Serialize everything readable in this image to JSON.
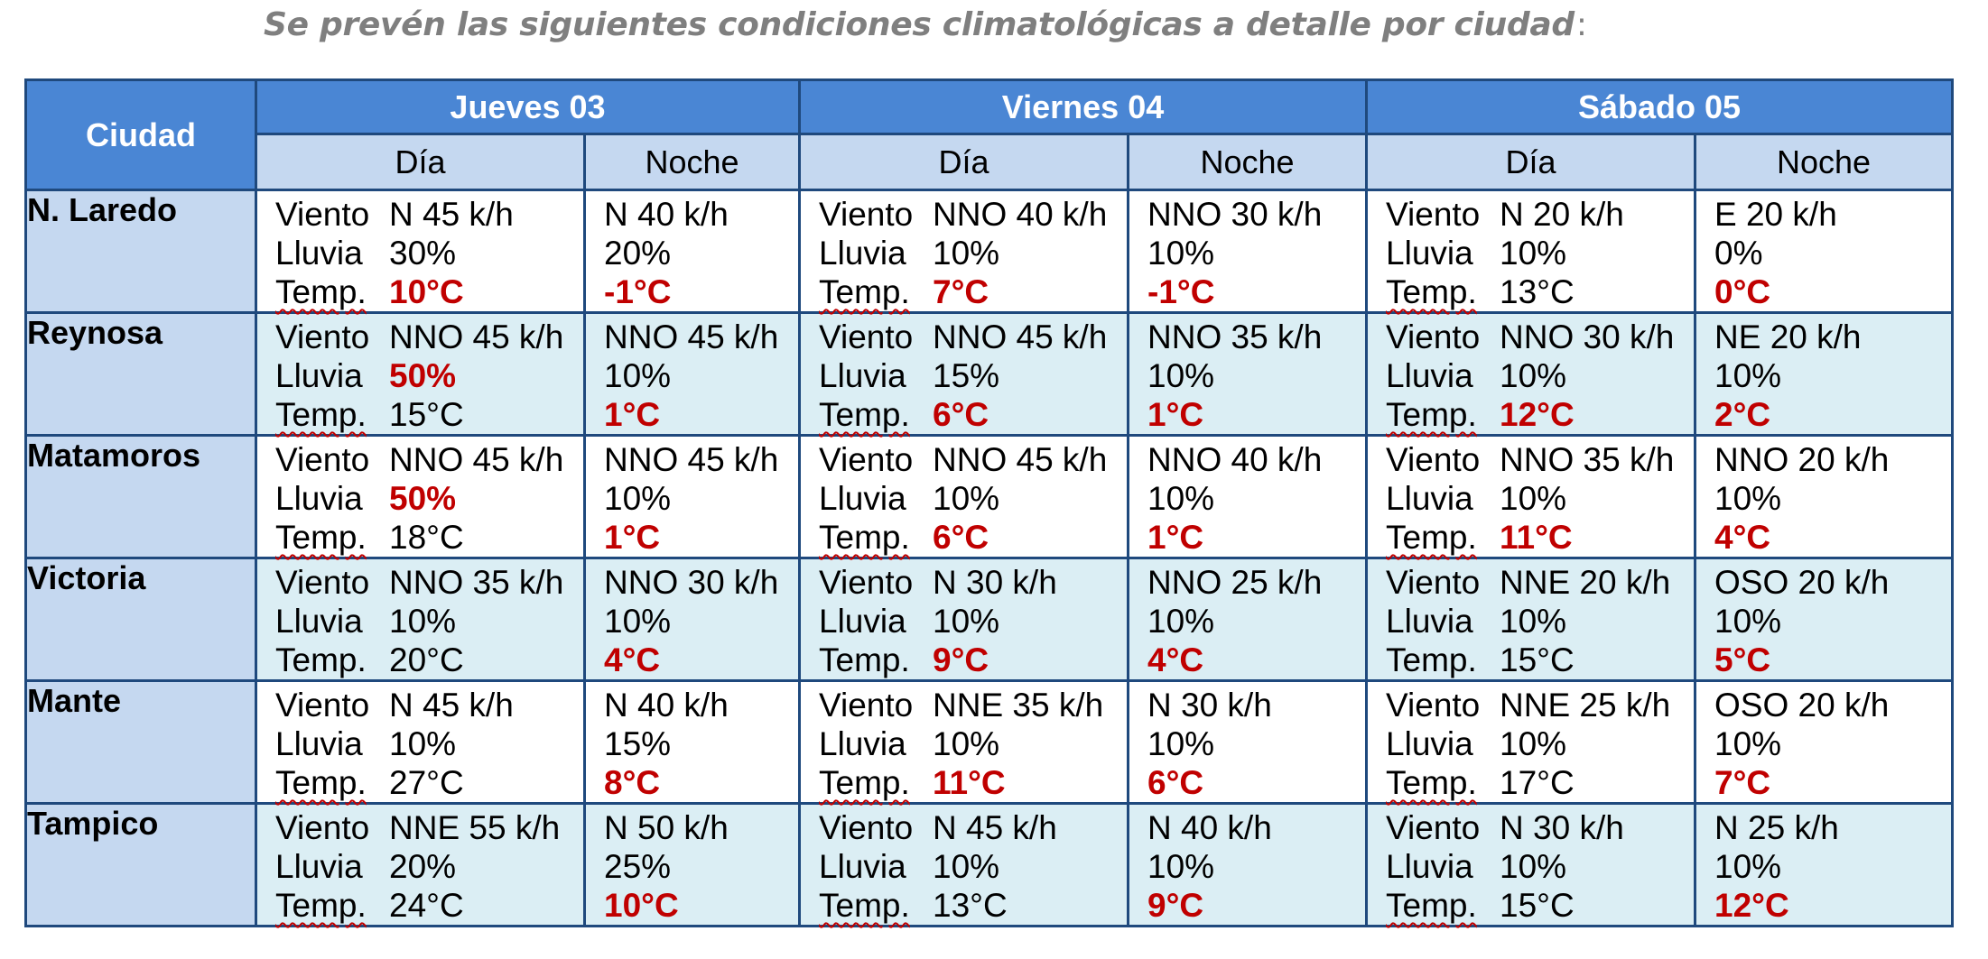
{
  "title": "Se prevén las siguientes condiciones climatológicas a detalle por ciudad",
  "title_suffix": ":",
  "header": {
    "ciudad": "Ciudad",
    "days": [
      "Jueves 03",
      "Viernes 04",
      "Sábado 05"
    ],
    "sub_day": "Día",
    "sub_night": "Noche"
  },
  "labels": {
    "viento": "Viento",
    "lluvia": "Lluvia",
    "temp": "Temp."
  },
  "colors": {
    "header_blue": "#4a86d4",
    "subheader": "#c5d8f0",
    "alt_row": "#dbeef4",
    "highlight_red": "#c00000",
    "border": "#1f497d"
  },
  "rows": [
    {
      "city": "N. Laredo",
      "cells": [
        {
          "viento": "N 45 k/h",
          "lluvia": "30%",
          "temp": "10°C"
        },
        {
          "viento": "N 40 k/h",
          "lluvia": "20%",
          "temp": "-1°C"
        },
        {
          "viento": "NNO 40 k/h",
          "lluvia": "10%",
          "temp": "7°C"
        },
        {
          "viento": "NNO 30 k/h",
          "lluvia": "10%",
          "temp": "-1°C"
        },
        {
          "viento": "N 20 k/h",
          "lluvia": "10%",
          "temp": "13°C"
        },
        {
          "viento": "E 20 k/h",
          "lluvia": "0%",
          "temp": "0°C"
        }
      ]
    },
    {
      "city": "Reynosa",
      "cells": [
        {
          "viento": "NNO 45 k/h",
          "lluvia": "50%",
          "temp": "15°C"
        },
        {
          "viento": "NNO 45 k/h",
          "lluvia": "10%",
          "temp": "1°C"
        },
        {
          "viento": "NNO 45 k/h",
          "lluvia": "15%",
          "temp": "6°C"
        },
        {
          "viento": "NNO 35 k/h",
          "lluvia": "10%",
          "temp": "1°C"
        },
        {
          "viento": "NNO 30 k/h",
          "lluvia": "10%",
          "temp": "12°C"
        },
        {
          "viento": "NE 20 k/h",
          "lluvia": "10%",
          "temp": "2°C"
        }
      ]
    },
    {
      "city": "Matamoros",
      "cells": [
        {
          "viento": "NNO 45 k/h",
          "lluvia": "50%",
          "temp": "18°C"
        },
        {
          "viento": "NNO 45 k/h",
          "lluvia": "10%",
          "temp": "1°C"
        },
        {
          "viento": "NNO 45 k/h",
          "lluvia": "10%",
          "temp": "6°C"
        },
        {
          "viento": "NNO 40 k/h",
          "lluvia": "10%",
          "temp": "1°C"
        },
        {
          "viento": "NNO 35 k/h",
          "lluvia": "10%",
          "temp": "11°C"
        },
        {
          "viento": "NNO 20 k/h",
          "lluvia": "10%",
          "temp": "4°C"
        }
      ]
    },
    {
      "city": "Victoria",
      "cells": [
        {
          "viento": "NNO 35 k/h",
          "lluvia": "10%",
          "temp": "20°C"
        },
        {
          "viento": "NNO 30 k/h",
          "lluvia": "10%",
          "temp": "4°C"
        },
        {
          "viento": "N 30 k/h",
          "lluvia": "10%",
          "temp": "9°C"
        },
        {
          "viento": "NNO 25 k/h",
          "lluvia": "10%",
          "temp": "4°C"
        },
        {
          "viento": "NNE 20 k/h",
          "lluvia": "10%",
          "temp": "15°C"
        },
        {
          "viento": "OSO 20 k/h",
          "lluvia": "10%",
          "temp": "5°C"
        }
      ]
    },
    {
      "city": "Mante",
      "cells": [
        {
          "viento": "N 45 k/h",
          "lluvia": "10%",
          "temp": "27°C"
        },
        {
          "viento": "N 40 k/h",
          "lluvia": "15%",
          "temp": "8°C"
        },
        {
          "viento": "NNE 35 k/h",
          "lluvia": "10%",
          "temp": "11°C"
        },
        {
          "viento": "N 30 k/h",
          "lluvia": "10%",
          "temp": "6°C"
        },
        {
          "viento": "NNE 25 k/h",
          "lluvia": "10%",
          "temp": "17°C"
        },
        {
          "viento": "OSO 20 k/h",
          "lluvia": "10%",
          "temp": "7°C"
        }
      ]
    },
    {
      "city": "Tampico",
      "cells": [
        {
          "viento": "NNE 55 k/h",
          "lluvia": "20%",
          "temp": "24°C"
        },
        {
          "viento": "N 50 k/h",
          "lluvia": "25%",
          "temp": "10°C"
        },
        {
          "viento": "N 45 k/h",
          "lluvia": "10%",
          "temp": "13°C"
        },
        {
          "viento": "N 40 k/h",
          "lluvia": "10%",
          "temp": "9°C"
        },
        {
          "viento": "N 30 k/h",
          "lluvia": "10%",
          "temp": "15°C"
        },
        {
          "viento": "N 25 k/h",
          "lluvia": "10%",
          "temp": "12°C"
        }
      ]
    }
  ],
  "highlights": [
    [
      {
        "temp": true
      },
      {
        "temp": true
      },
      {
        "temp": true
      },
      {
        "temp": true
      },
      {},
      {
        "temp": true
      }
    ],
    [
      {
        "lluvia": true
      },
      {
        "temp": true
      },
      {
        "temp": true
      },
      {
        "temp": true
      },
      {
        "temp": true
      },
      {
        "temp": true
      }
    ],
    [
      {
        "lluvia": true
      },
      {
        "temp": true
      },
      {
        "temp": true
      },
      {
        "temp": true
      },
      {
        "temp": true
      },
      {
        "temp": true
      }
    ],
    [
      {},
      {
        "temp": true
      },
      {
        "temp": true
      },
      {
        "temp": true
      },
      {},
      {
        "temp": true
      }
    ],
    [
      {},
      {
        "temp": true
      },
      {
        "temp": true
      },
      {
        "temp": true
      },
      {},
      {
        "temp": true
      }
    ],
    [
      {},
      {
        "temp": true
      },
      {},
      {
        "temp": true
      },
      {},
      {
        "temp": true
      }
    ]
  ],
  "temp_underlined": [
    true,
    true,
    true,
    false,
    true,
    true
  ]
}
